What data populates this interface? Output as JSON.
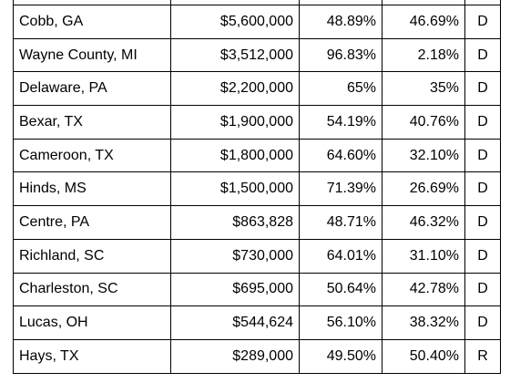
{
  "table": {
    "rows": [
      {
        "county": "Cobb, GA",
        "amount": "$5,600,000",
        "dem_pct": "48.89%",
        "rep_pct": "46.69%",
        "party": "D"
      },
      {
        "county": "Wayne County, MI",
        "amount": "$3,512,000",
        "dem_pct": "96.83%",
        "rep_pct": "2.18%",
        "party": "D"
      },
      {
        "county": "Delaware, PA",
        "amount": "$2,200,000",
        "dem_pct": "65%",
        "rep_pct": "35%",
        "party": "D"
      },
      {
        "county": "Bexar, TX",
        "amount": "$1,900,000",
        "dem_pct": "54.19%",
        "rep_pct": "40.76%",
        "party": "D"
      },
      {
        "county": "Cameroon, TX",
        "amount": "$1,800,000",
        "dem_pct": "64.60%",
        "rep_pct": "32.10%",
        "party": "D"
      },
      {
        "county": "Hinds, MS",
        "amount": "$1,500,000",
        "dem_pct": "71.39%",
        "rep_pct": "26.69%",
        "party": "D"
      },
      {
        "county": "Centre, PA",
        "amount": "$863,828",
        "dem_pct": "48.71%",
        "rep_pct": "46.32%",
        "party": "D"
      },
      {
        "county": "Richland, SC",
        "amount": "$730,000",
        "dem_pct": "64.01%",
        "rep_pct": "31.10%",
        "party": "D"
      },
      {
        "county": "Charleston, SC",
        "amount": "$695,000",
        "dem_pct": "50.64%",
        "rep_pct": "42.78%",
        "party": "D"
      },
      {
        "county": "Lucas, OH",
        "amount": "$544,624",
        "dem_pct": "56.10%",
        "rep_pct": "38.32%",
        "party": "D"
      },
      {
        "county": "Hays, TX",
        "amount": "$289,000",
        "dem_pct": "49.50%",
        "rep_pct": "50.40%",
        "party": "R"
      }
    ]
  }
}
